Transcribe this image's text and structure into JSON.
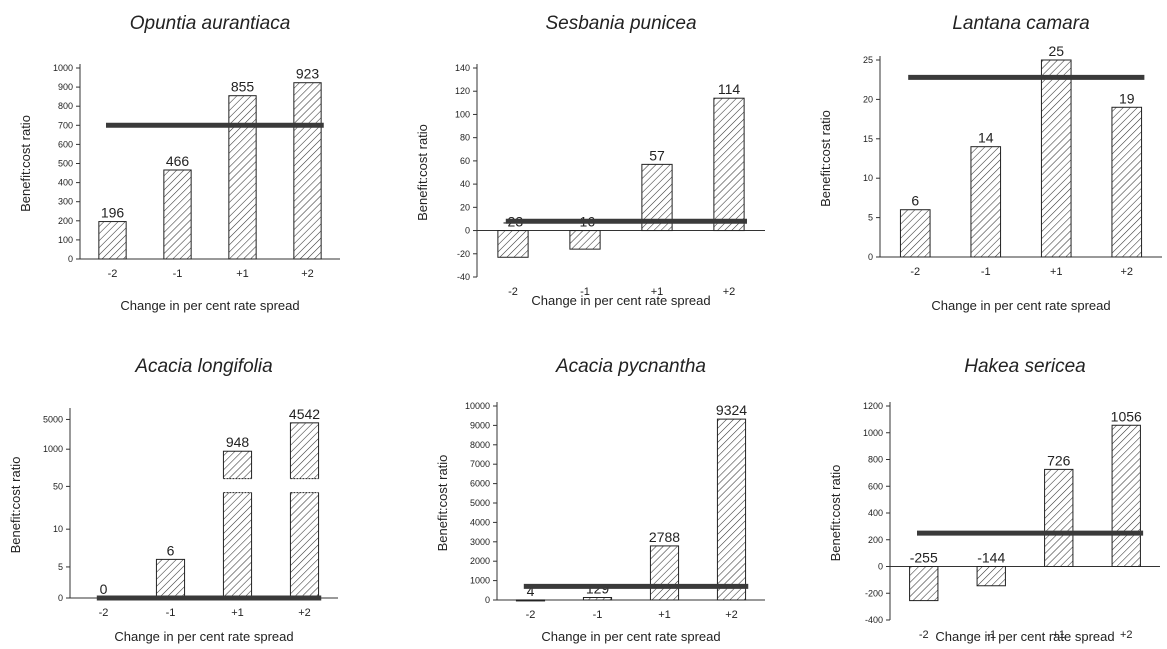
{
  "chart_data": [
    {
      "type": "bar",
      "title": "Opuntia aurantiaca",
      "xlabel": "Change in per cent rate spread",
      "ylabel": "Benefit:cost ratio",
      "categories": [
        "-2",
        "-1",
        "+1",
        "+2"
      ],
      "values": [
        196,
        466,
        855,
        923
      ],
      "value_labels": [
        "196",
        "466",
        "855",
        "923"
      ],
      "reference_line": 700,
      "ylim": [
        0,
        1000
      ],
      "yticks": [
        "0",
        "100",
        "200",
        "300",
        "400",
        "500",
        "600",
        "700",
        "800",
        "900",
        "1000"
      ]
    },
    {
      "type": "bar",
      "title": "Sesbania punicea",
      "xlabel": "Change in per cent rate spread",
      "ylabel": "Benefit:cost ratio",
      "categories": [
        "-2",
        "-1",
        "+1",
        "+2"
      ],
      "values": [
        -23,
        -16,
        57,
        114
      ],
      "value_labels": [
        "-23",
        "-16",
        "57",
        "114"
      ],
      "reference_line": 8,
      "ylim": [
        -40,
        140
      ],
      "yticks": [
        "-40",
        "-20",
        "0",
        "20",
        "40",
        "60",
        "80",
        "100",
        "120",
        "140"
      ]
    },
    {
      "type": "bar",
      "title": "Lantana camara",
      "xlabel": "Change in per cent rate spread",
      "ylabel": "Benefit:cost ratio",
      "categories": [
        "-2",
        "-1",
        "+1",
        "+2"
      ],
      "values": [
        6,
        14,
        25,
        19
      ],
      "value_labels": [
        "6",
        "14",
        "25",
        "19"
      ],
      "reference_line": 22.8,
      "ylim": [
        0,
        25
      ],
      "yticks": [
        "0",
        "5",
        "10",
        "15",
        "20",
        "25"
      ]
    },
    {
      "type": "bar",
      "title": "Acacia longifolia",
      "xlabel": "Change in per cent rate spread",
      "ylabel": "Benefit:cost ratio",
      "categories": [
        "-2",
        "-1",
        "+1",
        "+2"
      ],
      "values": [
        0,
        6,
        948,
        4542
      ],
      "value_labels": [
        "0",
        "6",
        "948",
        "4542"
      ],
      "reference_line": 0,
      "broken_axis": true,
      "yticks": [
        "0",
        "5",
        "10",
        "50",
        "1000",
        "5000"
      ]
    },
    {
      "type": "bar",
      "title": "Acacia pycnantha",
      "xlabel": "Change in per cent rate spread",
      "ylabel": "Benefit:cost ratio",
      "categories": [
        "-2",
        "-1",
        "+1",
        "+2"
      ],
      "values": [
        4,
        129,
        2788,
        9324
      ],
      "value_labels": [
        "4",
        "129",
        "2788",
        "9324"
      ],
      "reference_line": 700,
      "ylim": [
        0,
        10000
      ],
      "yticks": [
        "0",
        "1000",
        "2000",
        "3000",
        "4000",
        "5000",
        "6000",
        "7000",
        "8000",
        "9000",
        "10000"
      ]
    },
    {
      "type": "bar",
      "title": "Hakea sericea",
      "xlabel": "Change in per cent rate spread",
      "ylabel": "Benefit:cost ratio",
      "categories": [
        "-2",
        "-1",
        "+1",
        "+2"
      ],
      "values": [
        -255,
        -144,
        726,
        1056
      ],
      "value_labels": [
        "-255",
        "-144",
        "726",
        "1056"
      ],
      "reference_line": 250,
      "ylim": [
        -400,
        1200
      ],
      "yticks": [
        "-400",
        "-200",
        "0",
        "200",
        "400",
        "600",
        "800",
        "1000",
        "1200"
      ]
    }
  ]
}
